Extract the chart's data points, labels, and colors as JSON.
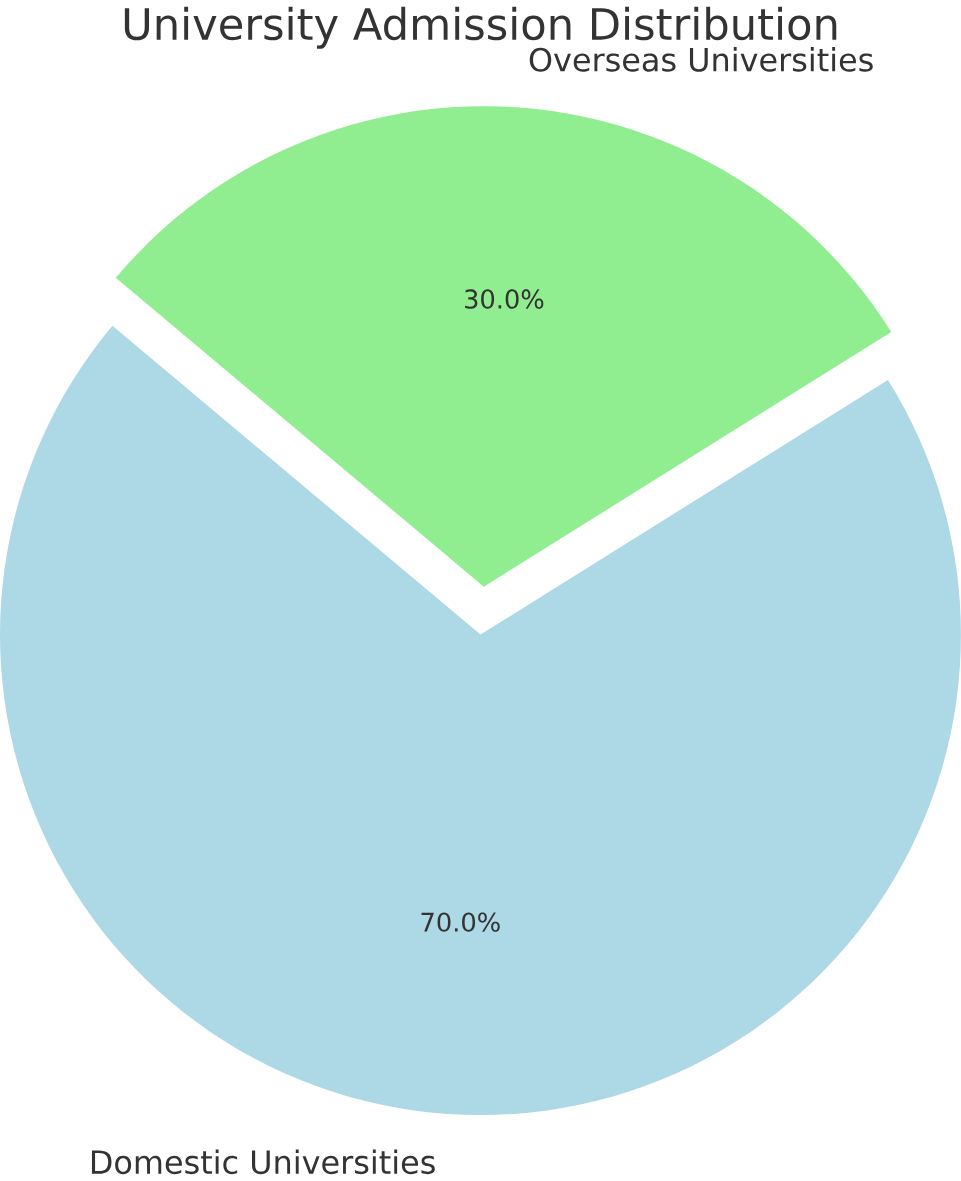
{
  "chart_data": {
    "type": "pie",
    "title": "University Admission Distribution",
    "categories": [
      "Domestic Universities",
      "Overseas Universities"
    ],
    "values": [
      70,
      30
    ],
    "colors": [
      "#add8e6",
      "#90ee90"
    ],
    "value_labels": [
      "70.0%",
      "30.0%"
    ]
  }
}
